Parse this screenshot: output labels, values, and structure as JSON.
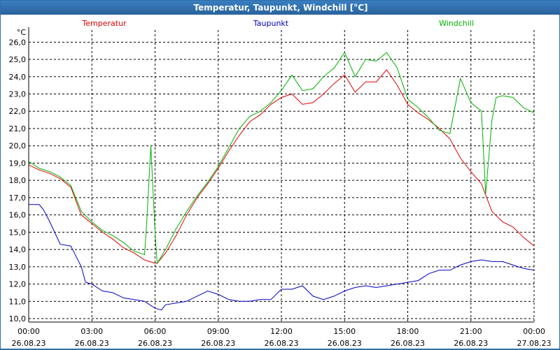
{
  "window": {
    "title": "Temperatur, Taupunkt, Windchill [°C]"
  },
  "chart_data": {
    "type": "line",
    "ylabel": "°C",
    "ylim": [
      9.8,
      26.7
    ],
    "yticks": [
      "10,0",
      "11,0",
      "12,0",
      "13,0",
      "14,0",
      "15,0",
      "16,0",
      "17,0",
      "18,0",
      "19,0",
      "20,0",
      "21,0",
      "22,0",
      "23,0",
      "24,0",
      "25,0",
      "26,0"
    ],
    "xlim": [
      0,
      24
    ],
    "xticks": [
      {
        "h": 0,
        "time": "00:00",
        "date": "26.08.23"
      },
      {
        "h": 3,
        "time": "03:00",
        "date": "26.08.23"
      },
      {
        "h": 6,
        "time": "06:00",
        "date": "26.08.23"
      },
      {
        "h": 9,
        "time": "09:00",
        "date": "26.08.23"
      },
      {
        "h": 12,
        "time": "12:00",
        "date": "26.08.23"
      },
      {
        "h": 15,
        "time": "15:00",
        "date": "26.08.23"
      },
      {
        "h": 18,
        "time": "18:00",
        "date": "26.08.23"
      },
      {
        "h": 21,
        "time": "21:00",
        "date": "26.08.23"
      },
      {
        "h": 24,
        "time": "00:00",
        "date": "27.08.23"
      }
    ],
    "series": [
      {
        "name": "Temperatur",
        "color": "#e00000",
        "x": [
          0,
          0.5,
          1,
          1.5,
          2,
          2.5,
          3,
          3.5,
          4,
          4.5,
          5,
          5.5,
          6,
          6.1,
          6.5,
          7,
          7.5,
          8,
          8.5,
          9,
          9.5,
          10,
          10.5,
          11,
          11.5,
          12,
          12.5,
          13,
          13.5,
          14,
          14.5,
          15,
          15.5,
          16,
          16.5,
          17,
          17.5,
          18,
          18.5,
          19,
          19.5,
          20,
          20.5,
          21,
          21.5,
          22,
          22.5,
          23,
          23.5,
          24
        ],
        "y": [
          18.9,
          18.6,
          18.4,
          18.1,
          17.6,
          16.0,
          15.5,
          15.0,
          14.6,
          14.1,
          13.8,
          13.4,
          13.2,
          13.2,
          13.8,
          14.8,
          16.0,
          17.0,
          17.8,
          18.7,
          19.7,
          20.6,
          21.4,
          21.8,
          22.4,
          22.8,
          23.0,
          22.4,
          22.5,
          23.0,
          23.6,
          24.1,
          23.1,
          23.7,
          23.7,
          24.4,
          23.5,
          22.4,
          21.9,
          21.5,
          21.0,
          20.4,
          19.3,
          18.5,
          17.8,
          16.2,
          15.6,
          15.3,
          14.7,
          14.2
        ]
      },
      {
        "name": "Taupunkt",
        "color": "#0000c0",
        "x": [
          0,
          0.5,
          0.7,
          1,
          1.5,
          2,
          2.5,
          2.7,
          3,
          3.5,
          4,
          4.5,
          5,
          5.5,
          6,
          6.3,
          6.5,
          7,
          7.5,
          8,
          8.5,
          9,
          9.5,
          10,
          10.5,
          11,
          11.5,
          12,
          12.5,
          13,
          13.5,
          14,
          14.5,
          15,
          15.5,
          16,
          16.5,
          17,
          17.5,
          18,
          18.5,
          19,
          19.5,
          20,
          20.5,
          21,
          21.5,
          22,
          22.5,
          23,
          23.5,
          24
        ],
        "y": [
          16.6,
          16.6,
          16.3,
          15.6,
          14.3,
          14.2,
          13.0,
          12.1,
          12.0,
          11.6,
          11.5,
          11.2,
          11.1,
          11.0,
          10.6,
          10.5,
          10.8,
          10.9,
          11.0,
          11.3,
          11.6,
          11.4,
          11.1,
          11.0,
          11.0,
          11.1,
          11.1,
          11.7,
          11.7,
          11.9,
          11.3,
          11.1,
          11.3,
          11.6,
          11.8,
          11.9,
          11.8,
          11.9,
          12.0,
          12.1,
          12.2,
          12.6,
          12.8,
          12.8,
          13.1,
          13.3,
          13.4,
          13.3,
          13.3,
          13.1,
          12.9,
          12.8
        ]
      },
      {
        "name": "Windchill",
        "color": "#00b000",
        "x": [
          0,
          0.5,
          1,
          1.5,
          2,
          2.5,
          3,
          3.5,
          4,
          4.5,
          5,
          5.5,
          5.6,
          5.8,
          6,
          6.1,
          6.5,
          7,
          7.5,
          8,
          8.5,
          9,
          9.5,
          10,
          10.5,
          11,
          11.5,
          12,
          12.5,
          13,
          13.5,
          14,
          14.5,
          15,
          15.5,
          16,
          16.5,
          17,
          17.5,
          18,
          18.5,
          19,
          19.5,
          20,
          20.5,
          21,
          21.5,
          21.7,
          22,
          22.2,
          22.5,
          23,
          23.5,
          24
        ],
        "y": [
          19.1,
          18.7,
          18.5,
          18.2,
          17.7,
          16.2,
          15.6,
          15.1,
          14.8,
          14.4,
          13.9,
          13.7,
          15.5,
          20.0,
          15.0,
          13.2,
          14.0,
          15.2,
          16.2,
          17.1,
          17.9,
          18.8,
          19.9,
          21.0,
          21.7,
          22.0,
          22.5,
          23.2,
          24.1,
          23.2,
          23.3,
          24.0,
          24.5,
          25.4,
          24.0,
          25.0,
          24.9,
          25.4,
          24.5,
          22.7,
          22.2,
          21.6,
          20.9,
          20.7,
          23.9,
          22.5,
          22.0,
          17.2,
          21.5,
          22.8,
          22.9,
          22.8,
          22.2,
          21.9
        ]
      }
    ]
  }
}
